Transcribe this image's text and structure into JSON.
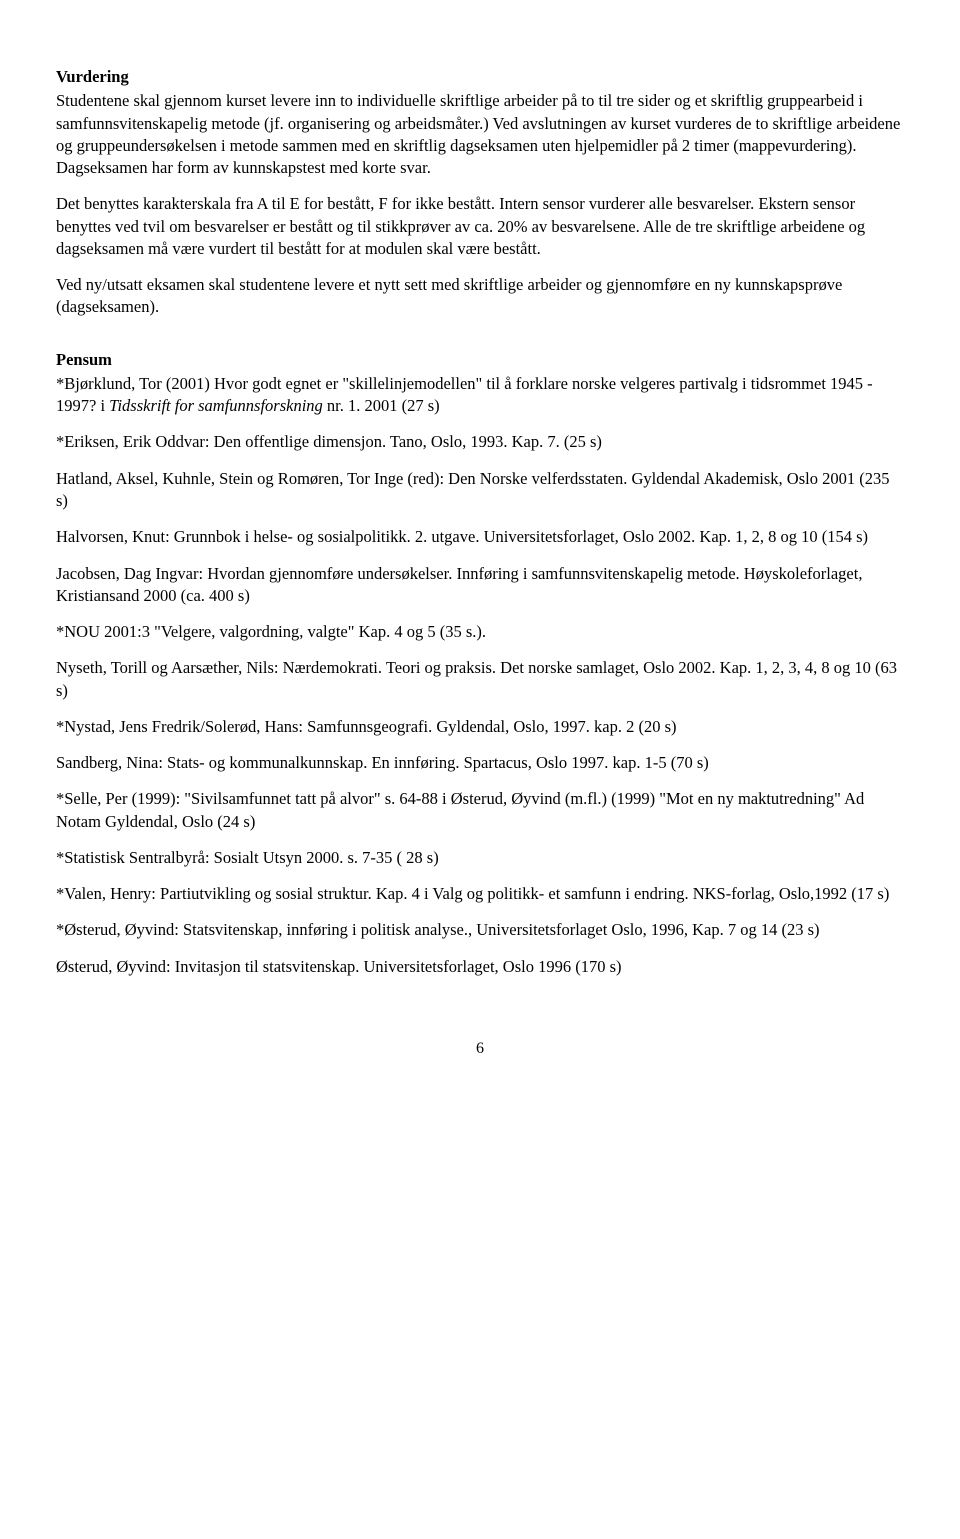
{
  "vurdering": {
    "heading": "Vurdering",
    "p1": "Studentene skal gjennom kurset levere inn to individuelle skriftlige arbeider på to til tre sider og et skriftlig gruppearbeid i samfunnsvitenskapelig metode (jf. organisering og arbeidsmåter.) Ved avslutningen av kurset vurderes de to skriftlige arbeidene og gruppeundersøkelsen i metode sammen med en skriftlig dagseksamen uten hjelpemidler på 2 timer (mappevurdering). Dagseksamen har form av kunnskapstest med korte svar.",
    "p2": "Det benyttes karakterskala fra A til E for bestått, F for ikke bestått. Intern sensor vurderer alle besvarelser. Ekstern sensor benyttes ved tvil om besvarelser er bestått og til stikkprøver av ca. 20% av besvarelsene. Alle de tre skriftlige arbeidene og dagseksamen må være vurdert til bestått for at modulen skal være bestått.",
    "p3": "Ved ny/utsatt eksamen skal studentene levere et nytt sett med skriftlige arbeider og gjennomføre en ny kunnskapsprøve (dagseksamen)."
  },
  "pensum": {
    "heading": "Pensum",
    "e1_a": "*Bjørklund, Tor (2001) Hvor godt egnet er \"skillelinjemodellen\" til å forklare norske velgeres partivalg i tidsrommet 1945 - 1997? i ",
    "e1_i": "Tidsskrift for samfunnsforskning",
    "e1_b": " nr. 1. 2001 (27 s)",
    "e2": "*Eriksen, Erik Oddvar:   Den offentlige dimensjon. Tano, Oslo, 1993. Kap. 7. (25 s)",
    "e3": "Hatland, Aksel, Kuhnle, Stein og Romøren, Tor Inge (red): Den Norske  velferdsstaten. Gyldendal Akademisk, Oslo 2001 (235 s)",
    "e4": "Halvorsen, Knut: Grunnbok i helse- og sosialpolitikk. 2. utgave. Universitetsforlaget, Oslo 2002. Kap. 1,  2, 8 og 10  (154 s)",
    "e5": "Jacobsen, Dag Ingvar:   Hvordan gjennomføre undersøkelser. Innføring i samfunnsvitenskapelig metode. Høyskoleforlaget, Kristiansand 2000 (ca. 400 s)",
    "e6": "*NOU 2001:3 \"Velgere, valgordning, valgte\" Kap. 4 og 5 (35 s.).",
    "e7": "Nyseth, Torill og Aarsæther, Nils:  Nærdemokrati. Teori og praksis. Det norske samlaget, Oslo 2002. Kap. 1, 2, 3, 4, 8 og 10 (63 s)",
    "e8": "*Nystad, Jens Fredrik/Solerød, Hans:   Samfunnsgeografi. Gyldendal, Oslo, 1997. kap. 2 (20 s)",
    "e9": "Sandberg, Nina:   Stats- og kommunalkunnskap. En innføring. Spartacus, Oslo 1997. kap. 1-5 (70 s)",
    "e10": "*Selle, Per (1999): \"Sivilsamfunnet tatt på alvor\" s. 64-88 i Østerud, Øyvind  (m.fl.) (1999) \"Mot en ny maktutredning\" Ad Notam Gyldendal, Oslo (24 s)",
    "e11": "*Statistisk Sentralbyrå:   Sosialt Utsyn 2000. s. 7-35 ( 28 s)",
    "e12": "*Valen, Henry:   Partiutvikling og sosial struktur. Kap. 4 i Valg og politikk- et samfunn i endring. NKS-forlag, Oslo,1992 (17 s)",
    "e13": "*Østerud, Øyvind: Statsvitenskap, innføring i politisk analyse., Universitetsforlaget Oslo, 1996, Kap. 7 og 14 (23 s)",
    "e14": "Østerud, Øyvind:   Invitasjon til statsvitenskap. Universitetsforlaget, Oslo 1996 (170 s)"
  },
  "pagenum": "6"
}
